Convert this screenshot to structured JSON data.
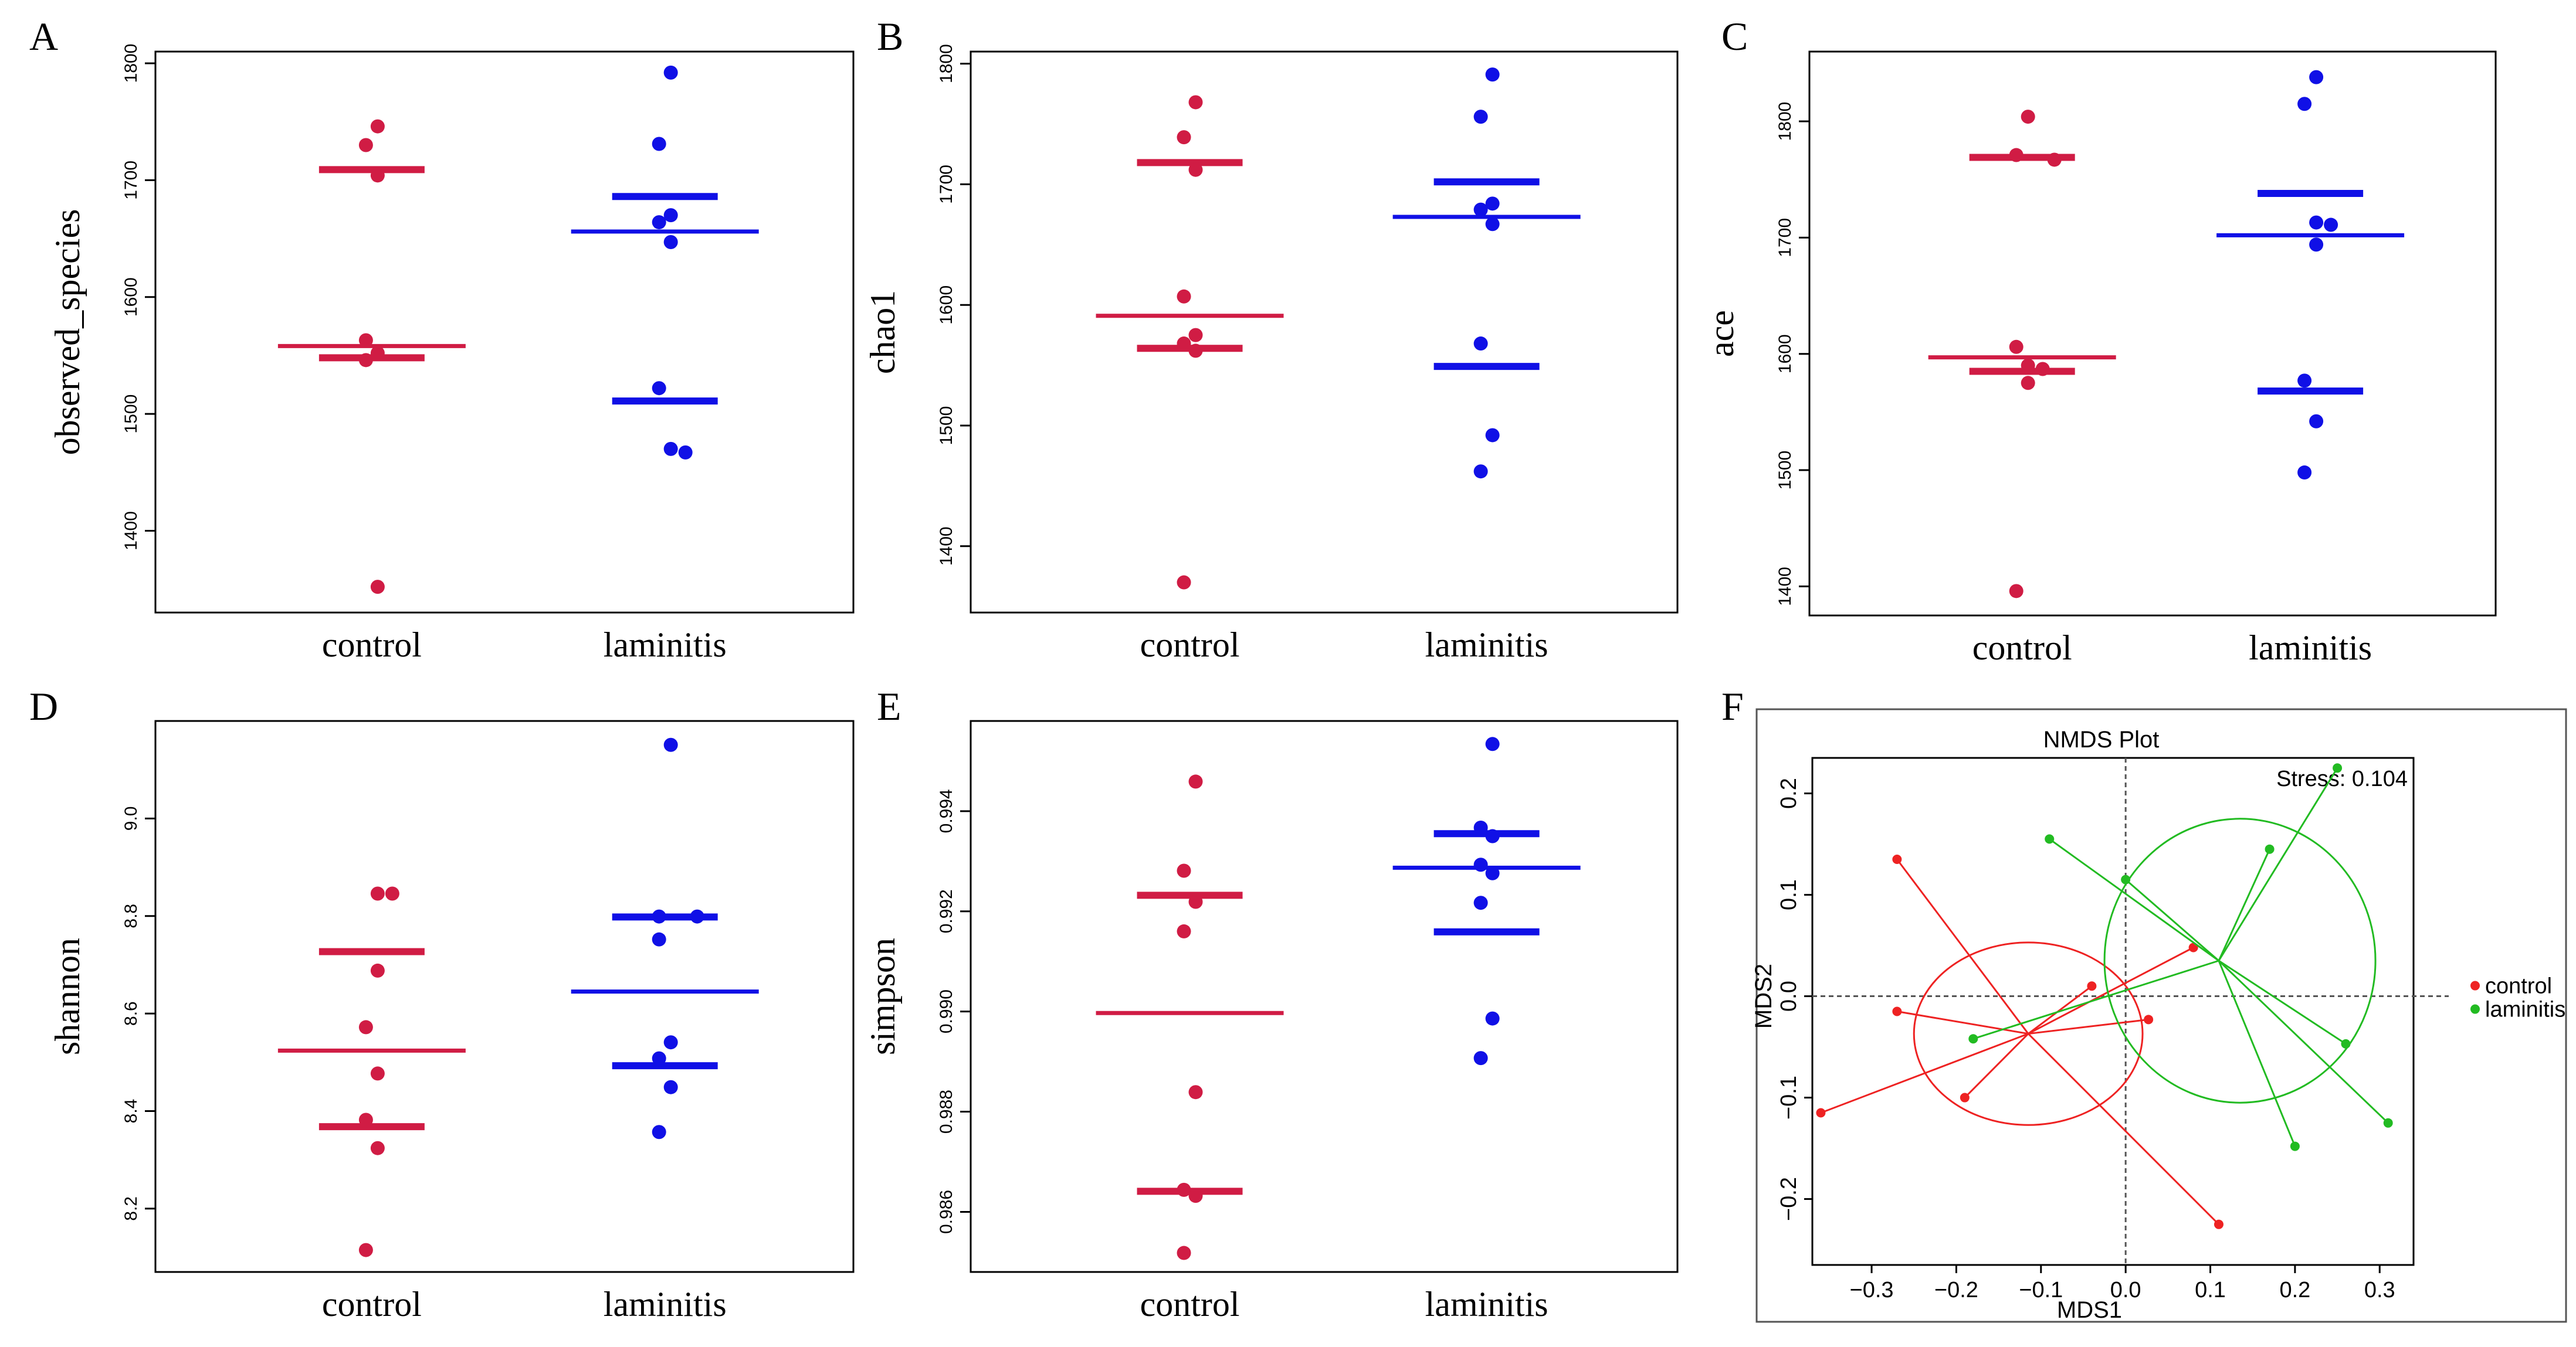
{
  "panels": [
    {
      "letter": "A",
      "chart_data": {
        "type": "scatter",
        "ylabel": "observed_species",
        "categories": [
          "control",
          "laminitis"
        ],
        "yticks": [
          1400,
          1500,
          1600,
          1700,
          1800
        ],
        "ylim": [
          1330,
          1810
        ],
        "colors": [
          "#d01c44",
          "#1010e6"
        ],
        "series": [
          {
            "name": "control",
            "values": [
              1746,
              1730,
              1704,
              1563,
              1552,
              1546,
              1352
            ],
            "mean": 1558,
            "sd_bars": [
              1709,
              1548
            ]
          },
          {
            "name": "laminitis",
            "values": [
              1792,
              1731,
              1670,
              1664,
              1647,
              1522,
              1470,
              1467
            ],
            "mean": 1656,
            "sd_bars": [
              1686,
              1511
            ]
          }
        ]
      }
    },
    {
      "letter": "B",
      "chart_data": {
        "type": "scatter",
        "ylabel": "chao1",
        "categories": [
          "control",
          "laminitis"
        ],
        "yticks": [
          1400,
          1500,
          1600,
          1700,
          1800
        ],
        "ylim": [
          1345,
          1810
        ],
        "colors": [
          "#d01c44",
          "#1010e6"
        ],
        "series": [
          {
            "name": "control",
            "values": [
              1768,
              1739,
              1712,
              1607,
              1575,
              1568,
              1562,
              1370
            ],
            "mean": 1591,
            "sd_bars": [
              1718,
              1564
            ]
          },
          {
            "name": "laminitis",
            "values": [
              1791,
              1756,
              1684,
              1679,
              1667,
              1568,
              1492,
              1462
            ],
            "mean": 1673,
            "sd_bars": [
              1702,
              1549
            ]
          }
        ]
      }
    },
    {
      "letter": "C",
      "chart_data": {
        "type": "scatter",
        "ylabel": "ace",
        "categories": [
          "control",
          "laminitis"
        ],
        "yticks": [
          1400,
          1500,
          1600,
          1700,
          1800
        ],
        "ylim": [
          1375,
          1860
        ],
        "colors": [
          "#d01c44",
          "#1010e6"
        ],
        "series": [
          {
            "name": "control",
            "values": [
              1804,
              1771,
              1767,
              1606,
              1590,
              1587,
              1575,
              1396
            ],
            "mean": 1597,
            "sd_bars": [
              1769,
              1585
            ]
          },
          {
            "name": "laminitis",
            "values": [
              1838,
              1815,
              1713,
              1711,
              1694,
              1577,
              1542,
              1498
            ],
            "mean": 1702,
            "sd_bars": [
              1738,
              1568
            ]
          }
        ]
      }
    },
    {
      "letter": "D",
      "chart_data": {
        "type": "scatter",
        "ylabel": "shannon",
        "categories": [
          "control",
          "laminitis"
        ],
        "yticks": [
          8.2,
          8.4,
          8.6,
          8.8,
          9.0
        ],
        "ytick_labels": [
          "8.2",
          "8.4",
          "8.6",
          "8.8",
          "9.0"
        ],
        "ylim": [
          8.07,
          9.2
        ],
        "colors": [
          "#d01c44",
          "#1010e6"
        ],
        "series": [
          {
            "name": "control",
            "values": [
              8.846,
              8.846,
              8.688,
              8.572,
              8.477,
              8.382,
              8.324,
              8.115
            ],
            "mean": 8.524,
            "sd_bars": [
              8.727,
              8.368
            ]
          },
          {
            "name": "laminitis",
            "values": [
              9.151,
              8.799,
              8.799,
              8.752,
              8.541,
              8.508,
              8.449,
              8.357
            ],
            "mean": 8.645,
            "sd_bars": [
              8.798,
              8.493
            ]
          }
        ]
      }
    },
    {
      "letter": "E",
      "chart_data": {
        "type": "scatter",
        "ylabel": "simpson",
        "categories": [
          "control",
          "laminitis"
        ],
        "yticks": [
          0.986,
          0.988,
          0.99,
          0.992,
          0.994
        ],
        "ytick_labels": [
          "0.986",
          "0.988",
          "0.990",
          "0.992",
          "0.994"
        ],
        "ylim": [
          0.9848,
          0.9958
        ],
        "colors": [
          "#d01c44",
          "#1010e6"
        ],
        "series": [
          {
            "name": "control",
            "values": [
              0.99459,
              0.99281,
              0.99219,
              0.9916,
              0.98839,
              0.98644,
              0.98632,
              0.98518
            ],
            "mean": 0.98997,
            "sd_bars": [
              0.99232,
              0.98641
            ]
          },
          {
            "name": "laminitis",
            "values": [
              0.99534,
              0.99367,
              0.9935,
              0.99293,
              0.99276,
              0.99217,
              0.98986,
              0.98907
            ],
            "mean": 0.99287,
            "sd_bars": [
              0.99355,
              0.99159
            ]
          }
        ]
      }
    },
    {
      "letter": "F",
      "chart_data": {
        "type": "scatter",
        "title": "NMDS Plot",
        "xlabel": "MDS1",
        "ylabel": "MDS2",
        "annotation": "Stress: 0.104",
        "xlim": [
          -0.37,
          0.34
        ],
        "ylim": [
          -0.265,
          0.235
        ],
        "xticks": [
          -0.3,
          -0.2,
          -0.1,
          0.0,
          0.1,
          0.2,
          0.3
        ],
        "xtick_labels": [
          "−0.3",
          "−0.2",
          "−0.1",
          "0.0",
          "0.1",
          "0.2",
          "0.3"
        ],
        "yticks": [
          -0.2,
          -0.1,
          0.0,
          0.1,
          0.2
        ],
        "ytick_labels": [
          "−0.2",
          "−0.1",
          "0.0",
          "0.1",
          "0.2"
        ],
        "legend": "right",
        "series": [
          {
            "name": "control",
            "color": "#ee2222",
            "centroid": [
              -0.115,
              -0.037
            ],
            "ellipse": {
              "cx": -0.115,
              "cy": -0.037,
              "rx": 0.135,
              "ry": 0.09,
              "angle": 0
            },
            "points": [
              [
                -0.27,
                0.135
              ],
              [
                -0.27,
                -0.015
              ],
              [
                -0.36,
                -0.115
              ],
              [
                -0.19,
                -0.1
              ],
              [
                -0.04,
                0.01
              ],
              [
                0.08,
                0.048
              ],
              [
                0.027,
                -0.023
              ],
              [
                0.11,
                -0.225
              ]
            ]
          },
          {
            "name": "laminitis",
            "color": "#22bb22",
            "centroid": [
              0.11,
              0.035
            ],
            "ellipse": {
              "cx": 0.135,
              "cy": 0.035,
              "rx": 0.16,
              "ry": 0.14,
              "angle": 0
            },
            "points": [
              [
                -0.09,
                0.155
              ],
              [
                0.0,
                0.115
              ],
              [
                -0.18,
                -0.042
              ],
              [
                0.17,
                0.145
              ],
              [
                0.25,
                0.225
              ],
              [
                0.26,
                -0.047
              ],
              [
                0.31,
                -0.125
              ],
              [
                0.2,
                -0.148
              ]
            ]
          }
        ]
      }
    }
  ]
}
